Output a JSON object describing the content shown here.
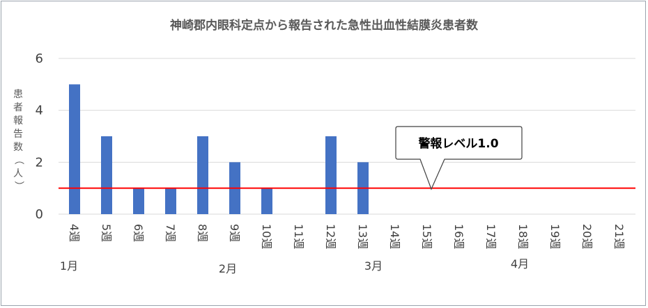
{
  "chart_data": {
    "type": "bar",
    "title": "神崎郡内眼科定点から報告された急性出血性結膜炎患者数",
    "ylabel": "患者報告数（人）",
    "xlabel": "",
    "categories": [
      "4週",
      "5週",
      "6週",
      "7週",
      "8週",
      "9週",
      "10週",
      "11週",
      "12週",
      "13週",
      "14週",
      "15週",
      "16週",
      "17週",
      "18週",
      "19週",
      "20週",
      "21週"
    ],
    "values": [
      5,
      3,
      1,
      1,
      3,
      2,
      1,
      null,
      3,
      2,
      null,
      null,
      null,
      null,
      null,
      null,
      null,
      null
    ],
    "ylim": [
      0,
      6
    ],
    "yticks": [
      0,
      2,
      4,
      6
    ],
    "grid": true,
    "bar_color": "#4472C4",
    "threshold": {
      "value": 1.0,
      "label": "警報レベル1.0",
      "color": "#FF0000"
    },
    "months": [
      {
        "label": "1月",
        "category": "4週"
      },
      {
        "label": "2月",
        "category": "9週"
      },
      {
        "label": "3月",
        "category": "13週"
      },
      {
        "label": "4月",
        "category": "18週"
      }
    ]
  }
}
